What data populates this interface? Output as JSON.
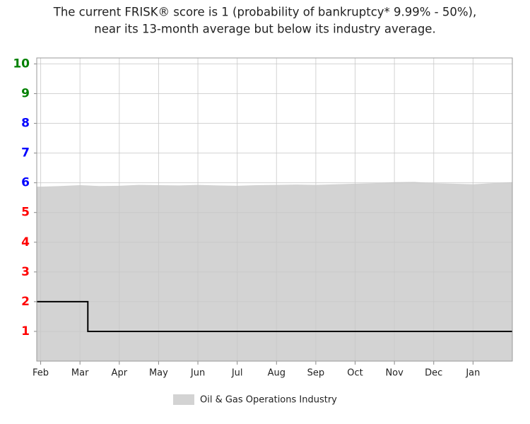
{
  "chart_data": {
    "type": "area-line",
    "title": [
      "The current FRISK® score is 1 (probability of bankruptcy* 9.99% - 50%),",
      "near its 13-month average but below its industry average."
    ],
    "xlim": [
      -0.1,
      12.0
    ],
    "xticks": [
      {
        "value": 0,
        "label": "Feb"
      },
      {
        "value": 1,
        "label": "Mar"
      },
      {
        "value": 2,
        "label": "Apr"
      },
      {
        "value": 3,
        "label": "May"
      },
      {
        "value": 4,
        "label": "Jun"
      },
      {
        "value": 5,
        "label": "Jul"
      },
      {
        "value": 6,
        "label": "Aug"
      },
      {
        "value": 7,
        "label": "Sep"
      },
      {
        "value": 8,
        "label": "Oct"
      },
      {
        "value": 9,
        "label": "Nov"
      },
      {
        "value": 10,
        "label": "Dec"
      },
      {
        "value": 11,
        "label": "Jan"
      }
    ],
    "ylim": [
      0,
      10.2
    ],
    "yticks": [
      1,
      2,
      3,
      4,
      5,
      6,
      7,
      8,
      9,
      10
    ],
    "ytick_colors": [
      "#ff0000",
      "#ff0000",
      "#ff0000",
      "#ff0000",
      "#ff0000",
      "#0000ff",
      "#0000ff",
      "#0000ff",
      "#008000",
      "#008000"
    ],
    "grid": true,
    "series": [
      {
        "name": "Oil & Gas Operations Industry",
        "kind": "area",
        "color": "#d3d3d3",
        "x": [
          -0.1,
          0,
          0.5,
          1,
          1.5,
          2,
          2.5,
          3,
          3.5,
          4,
          4.5,
          5,
          5.5,
          6,
          6.5,
          7,
          7.5,
          8,
          8.5,
          9,
          9.5,
          10,
          10.5,
          11,
          11.5,
          12
        ],
        "values": [
          5.87,
          5.87,
          5.89,
          5.92,
          5.89,
          5.9,
          5.93,
          5.92,
          5.91,
          5.93,
          5.91,
          5.9,
          5.92,
          5.93,
          5.94,
          5.93,
          5.95,
          5.97,
          5.99,
          6.02,
          6.03,
          5.99,
          5.97,
          5.95,
          5.99,
          6.02
        ]
      },
      {
        "kind": "line",
        "color": "#000000",
        "x": [
          -0.1,
          1.2,
          1.2,
          12.0
        ],
        "values": [
          2,
          2,
          1,
          1
        ]
      }
    ]
  }
}
